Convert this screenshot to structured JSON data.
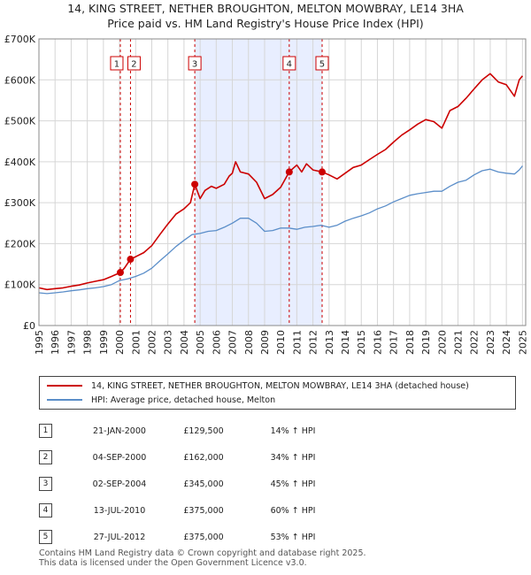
{
  "title_line1": "14, KING STREET, NETHER BROUGHTON, MELTON MOWBRAY, LE14 3HA",
  "title_line2": "Price paid vs. HM Land Registry's House Price Index (HPI)",
  "colors": {
    "property": "#cc0000",
    "hpi": "#5b8ec9",
    "shade": "#e8eeff",
    "grid": "#d6d6d6"
  },
  "chart_data": {
    "type": "line",
    "title": "14, KING STREET, NETHER BROUGHTON, MELTON MOWBRAY, LE14 3HA - Price paid vs. HM Land Registry's House Price Index (HPI)",
    "xlabel": "",
    "ylabel": "",
    "xlim": [
      1995.0,
      2025.2
    ],
    "ylim": [
      0,
      700000
    ],
    "x_ticks": [
      1995,
      1996,
      1997,
      1998,
      1999,
      2000,
      2001,
      2002,
      2003,
      2004,
      2005,
      2006,
      2007,
      2008,
      2009,
      2010,
      2011,
      2012,
      2013,
      2014,
      2015,
      2016,
      2017,
      2018,
      2019,
      2020,
      2021,
      2022,
      2023,
      2024,
      2025
    ],
    "y_ticks": [
      {
        "value": 0,
        "label": "£0"
      },
      {
        "value": 100000,
        "label": "£100K"
      },
      {
        "value": 200000,
        "label": "£200K"
      },
      {
        "value": 300000,
        "label": "£300K"
      },
      {
        "value": 400000,
        "label": "£400K"
      },
      {
        "value": 500000,
        "label": "£500K"
      },
      {
        "value": 600000,
        "label": "£600K"
      },
      {
        "value": 700000,
        "label": "£700K"
      }
    ],
    "grid": true,
    "shaded_region": [
      2004.67,
      2012.57
    ],
    "series": [
      {
        "name": "14, KING STREET, NETHER BROUGHTON, MELTON MOWBRAY, LE14 3HA (detached house)",
        "color": "#cc0000",
        "points": [
          [
            1995.0,
            92000
          ],
          [
            1995.5,
            88000
          ],
          [
            1996.0,
            90000
          ],
          [
            1996.5,
            92000
          ],
          [
            1997.0,
            96000
          ],
          [
            1997.5,
            99000
          ],
          [
            1998.0,
            104000
          ],
          [
            1998.5,
            108000
          ],
          [
            1999.0,
            112000
          ],
          [
            1999.5,
            120000
          ],
          [
            2000.05,
            129500
          ],
          [
            2000.3,
            140000
          ],
          [
            2000.68,
            162000
          ],
          [
            2001.0,
            168000
          ],
          [
            2001.5,
            178000
          ],
          [
            2002.0,
            195000
          ],
          [
            2002.5,
            222000
          ],
          [
            2003.0,
            248000
          ],
          [
            2003.5,
            272000
          ],
          [
            2004.0,
            285000
          ],
          [
            2004.4,
            300000
          ],
          [
            2004.67,
            345000
          ],
          [
            2005.0,
            310000
          ],
          [
            2005.3,
            330000
          ],
          [
            2005.7,
            340000
          ],
          [
            2006.0,
            335000
          ],
          [
            2006.5,
            345000
          ],
          [
            2006.8,
            365000
          ],
          [
            2007.0,
            372000
          ],
          [
            2007.2,
            400000
          ],
          [
            2007.5,
            375000
          ],
          [
            2008.0,
            370000
          ],
          [
            2008.5,
            350000
          ],
          [
            2009.0,
            310000
          ],
          [
            2009.5,
            320000
          ],
          [
            2010.0,
            338000
          ],
          [
            2010.53,
            375000
          ],
          [
            2010.8,
            385000
          ],
          [
            2011.0,
            392000
          ],
          [
            2011.3,
            375000
          ],
          [
            2011.6,
            395000
          ],
          [
            2012.0,
            380000
          ],
          [
            2012.57,
            375000
          ],
          [
            2013.0,
            368000
          ],
          [
            2013.5,
            358000
          ],
          [
            2014.0,
            372000
          ],
          [
            2014.5,
            386000
          ],
          [
            2015.0,
            392000
          ],
          [
            2015.5,
            405000
          ],
          [
            2016.0,
            418000
          ],
          [
            2016.5,
            430000
          ],
          [
            2017.0,
            448000
          ],
          [
            2017.5,
            465000
          ],
          [
            2018.0,
            478000
          ],
          [
            2018.5,
            492000
          ],
          [
            2019.0,
            503000
          ],
          [
            2019.5,
            498000
          ],
          [
            2020.0,
            482000
          ],
          [
            2020.5,
            525000
          ],
          [
            2021.0,
            535000
          ],
          [
            2021.5,
            555000
          ],
          [
            2022.0,
            578000
          ],
          [
            2022.5,
            600000
          ],
          [
            2023.0,
            615000
          ],
          [
            2023.5,
            595000
          ],
          [
            2024.0,
            588000
          ],
          [
            2024.5,
            560000
          ],
          [
            2024.8,
            600000
          ],
          [
            2025.0,
            610000
          ]
        ]
      },
      {
        "name": "HPI: Average price, detached house, Melton",
        "color": "#5b8ec9",
        "points": [
          [
            1995.0,
            80000
          ],
          [
            1995.5,
            78000
          ],
          [
            1996.0,
            80000
          ],
          [
            1996.5,
            82000
          ],
          [
            1997.0,
            85000
          ],
          [
            1997.5,
            87000
          ],
          [
            1998.0,
            90000
          ],
          [
            1998.5,
            92000
          ],
          [
            1999.0,
            95000
          ],
          [
            1999.5,
            100000
          ],
          [
            2000.0,
            110000
          ],
          [
            2000.5,
            114000
          ],
          [
            2001.0,
            120000
          ],
          [
            2001.5,
            128000
          ],
          [
            2002.0,
            140000
          ],
          [
            2002.5,
            158000
          ],
          [
            2003.0,
            175000
          ],
          [
            2003.5,
            193000
          ],
          [
            2004.0,
            208000
          ],
          [
            2004.5,
            222000
          ],
          [
            2005.0,
            225000
          ],
          [
            2005.5,
            230000
          ],
          [
            2006.0,
            232000
          ],
          [
            2006.5,
            240000
          ],
          [
            2007.0,
            250000
          ],
          [
            2007.5,
            262000
          ],
          [
            2008.0,
            262000
          ],
          [
            2008.5,
            250000
          ],
          [
            2009.0,
            230000
          ],
          [
            2009.5,
            232000
          ],
          [
            2010.0,
            238000
          ],
          [
            2010.5,
            238000
          ],
          [
            2011.0,
            235000
          ],
          [
            2011.5,
            240000
          ],
          [
            2012.0,
            242000
          ],
          [
            2012.5,
            245000
          ],
          [
            2013.0,
            240000
          ],
          [
            2013.5,
            245000
          ],
          [
            2014.0,
            255000
          ],
          [
            2014.5,
            262000
          ],
          [
            2015.0,
            268000
          ],
          [
            2015.5,
            275000
          ],
          [
            2016.0,
            285000
          ],
          [
            2016.5,
            292000
          ],
          [
            2017.0,
            302000
          ],
          [
            2017.5,
            310000
          ],
          [
            2018.0,
            318000
          ],
          [
            2018.5,
            322000
          ],
          [
            2019.0,
            325000
          ],
          [
            2019.5,
            328000
          ],
          [
            2020.0,
            328000
          ],
          [
            2020.5,
            340000
          ],
          [
            2021.0,
            350000
          ],
          [
            2021.5,
            355000
          ],
          [
            2022.0,
            368000
          ],
          [
            2022.5,
            378000
          ],
          [
            2023.0,
            382000
          ],
          [
            2023.5,
            375000
          ],
          [
            2024.0,
            372000
          ],
          [
            2024.5,
            370000
          ],
          [
            2024.8,
            380000
          ],
          [
            2025.0,
            390000
          ]
        ]
      }
    ],
    "sales": [
      {
        "label": "1",
        "x": 2000.05,
        "price": 129500
      },
      {
        "label": "2",
        "x": 2000.68,
        "price": 162000
      },
      {
        "label": "3",
        "x": 2004.67,
        "price": 345000
      },
      {
        "label": "4",
        "x": 2010.53,
        "price": 375000
      },
      {
        "label": "5",
        "x": 2012.57,
        "price": 375000
      }
    ]
  },
  "legend": {
    "property": "14, KING STREET, NETHER BROUGHTON, MELTON MOWBRAY, LE14 3HA (detached house)",
    "hpi": "HPI: Average price, detached house, Melton"
  },
  "transactions": [
    {
      "num": "1",
      "date": "21-JAN-2000",
      "price": "£129,500",
      "hpi": "14% ↑ HPI"
    },
    {
      "num": "2",
      "date": "04-SEP-2000",
      "price": "£162,000",
      "hpi": "34% ↑ HPI"
    },
    {
      "num": "3",
      "date": "02-SEP-2004",
      "price": "£345,000",
      "hpi": "45% ↑ HPI"
    },
    {
      "num": "4",
      "date": "13-JUL-2010",
      "price": "£375,000",
      "hpi": "60% ↑ HPI"
    },
    {
      "num": "5",
      "date": "27-JUL-2012",
      "price": "£375,000",
      "hpi": "53% ↑ HPI"
    }
  ],
  "footer": {
    "line1": "Contains HM Land Registry data © Crown copyright and database right 2025.",
    "line2": "This data is licensed under the Open Government Licence v3.0."
  }
}
